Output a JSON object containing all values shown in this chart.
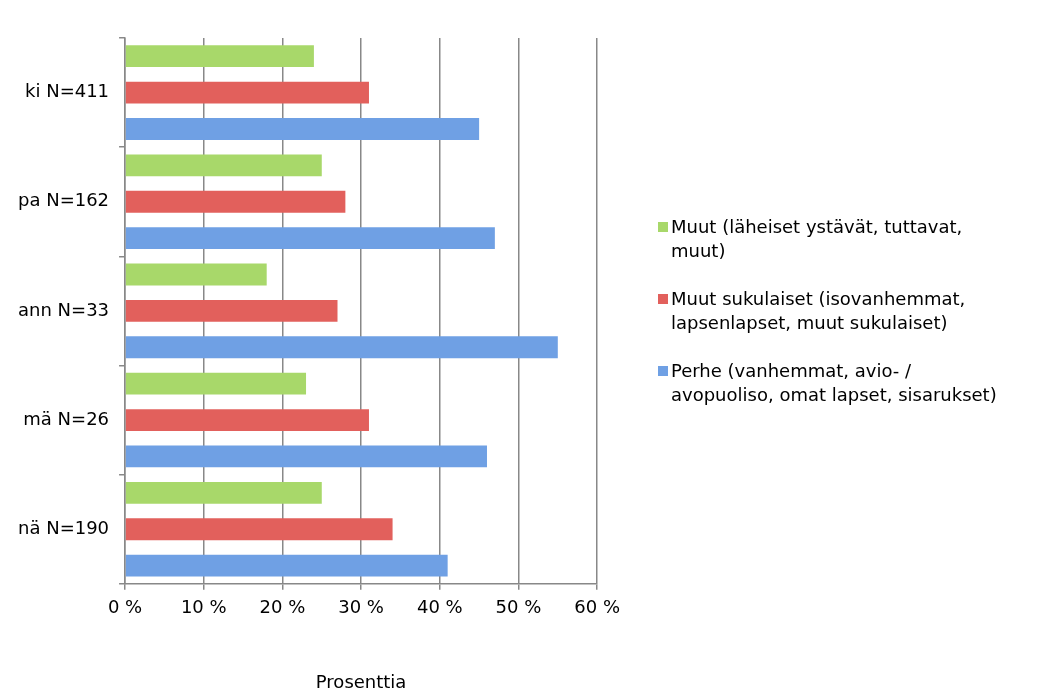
{
  "chart_data": {
    "type": "bar",
    "orientation": "horizontal",
    "categories": [
      "ki N=411",
      "pa N=162",
      "ann N=33",
      "mä N=26",
      "nä N=190"
    ],
    "series": [
      {
        "name": "Muut (läheiset ystävät, tuttavat, muut)",
        "color": "#a8d86a",
        "values": [
          24,
          25,
          18,
          23,
          25
        ]
      },
      {
        "name": "Muut sukulaiset (isovanhemmat, lapsenlapset, muut sukulaiset)",
        "color": "#e2605c",
        "values": [
          31,
          28,
          27,
          31,
          34
        ]
      },
      {
        "name": "Perhe (vanhemmat, avio- / avopuoliso, omat lapset, sisarukset)",
        "color": "#6fa0e4",
        "values": [
          45,
          47,
          55,
          46,
          41
        ]
      }
    ],
    "xlim": [
      0,
      60
    ],
    "xticks": [
      {
        "value": 0,
        "label": "0 %"
      },
      {
        "value": 10,
        "label": "10 %"
      },
      {
        "value": 20,
        "label": "20 %"
      },
      {
        "value": 30,
        "label": "30 %"
      },
      {
        "value": 40,
        "label": "40 %"
      },
      {
        "value": 50,
        "label": "50 %"
      },
      {
        "value": 60,
        "label": "60 %"
      }
    ],
    "xlabel": "Prosenttia",
    "grid": "x",
    "legend": "right"
  }
}
